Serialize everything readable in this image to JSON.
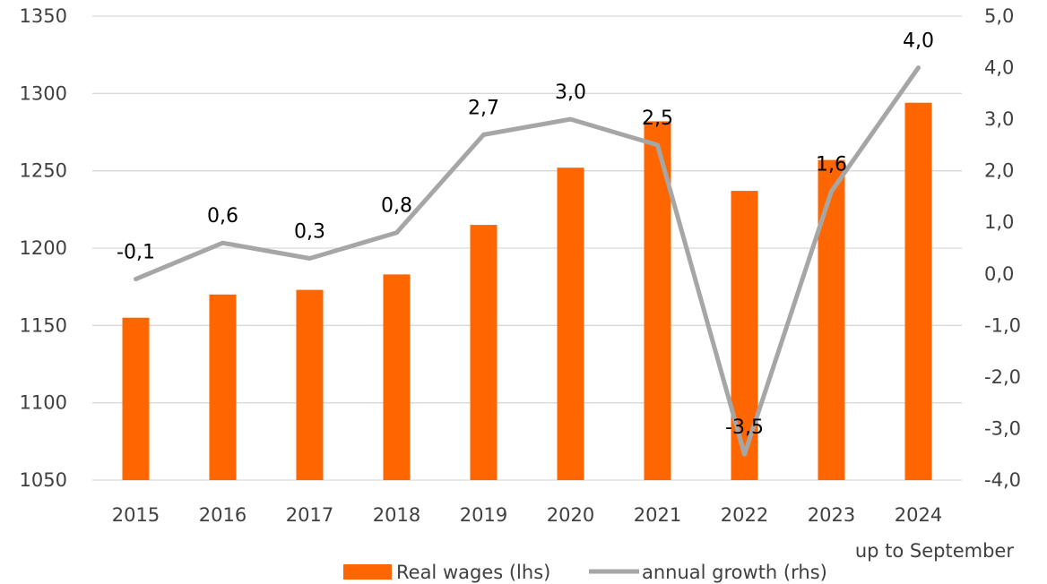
{
  "chart_data": {
    "type": "bar",
    "categories": [
      "2015",
      "2016",
      "2017",
      "2018",
      "2019",
      "2020",
      "2021",
      "2022",
      "2023",
      "2024"
    ],
    "series": [
      {
        "name": "Real wages (lhs)",
        "type": "bar",
        "axis": "left",
        "color": "#FF6600",
        "values": [
          1155,
          1170,
          1173,
          1183,
          1215,
          1252,
          1282,
          1237,
          1257,
          1294
        ]
      },
      {
        "name": "annual growth (rhs)",
        "type": "line",
        "axis": "right",
        "color": "#A6A6A6",
        "values": [
          -0.1,
          0.6,
          0.3,
          0.8,
          2.7,
          3.0,
          2.5,
          -3.5,
          1.6,
          4.0
        ],
        "data_labels": [
          "-0,1",
          "0,6",
          "0,3",
          "0,8",
          "2,7",
          "3,0",
          "2,5",
          "-3,5",
          "1,6",
          "4,0"
        ]
      }
    ],
    "y_left": {
      "lim": [
        1050,
        1350
      ],
      "ticks": [
        1050,
        1100,
        1150,
        1200,
        1250,
        1300,
        1350
      ],
      "tick_labels": [
        "1050",
        "1100",
        "1150",
        "1200",
        "1250",
        "1300",
        "1350"
      ]
    },
    "y_right": {
      "lim": [
        -4,
        5
      ],
      "ticks": [
        -4,
        -3,
        -2,
        -1,
        0,
        1,
        2,
        3,
        4,
        5
      ],
      "tick_labels": [
        "-4,0",
        "-3,0",
        "-2,0",
        "-1,0",
        "0,0",
        "1,0",
        "2,0",
        "3,0",
        "4,0",
        "5,0"
      ]
    },
    "x_note": "up to September",
    "grid": true,
    "legend_position": "bottom"
  }
}
